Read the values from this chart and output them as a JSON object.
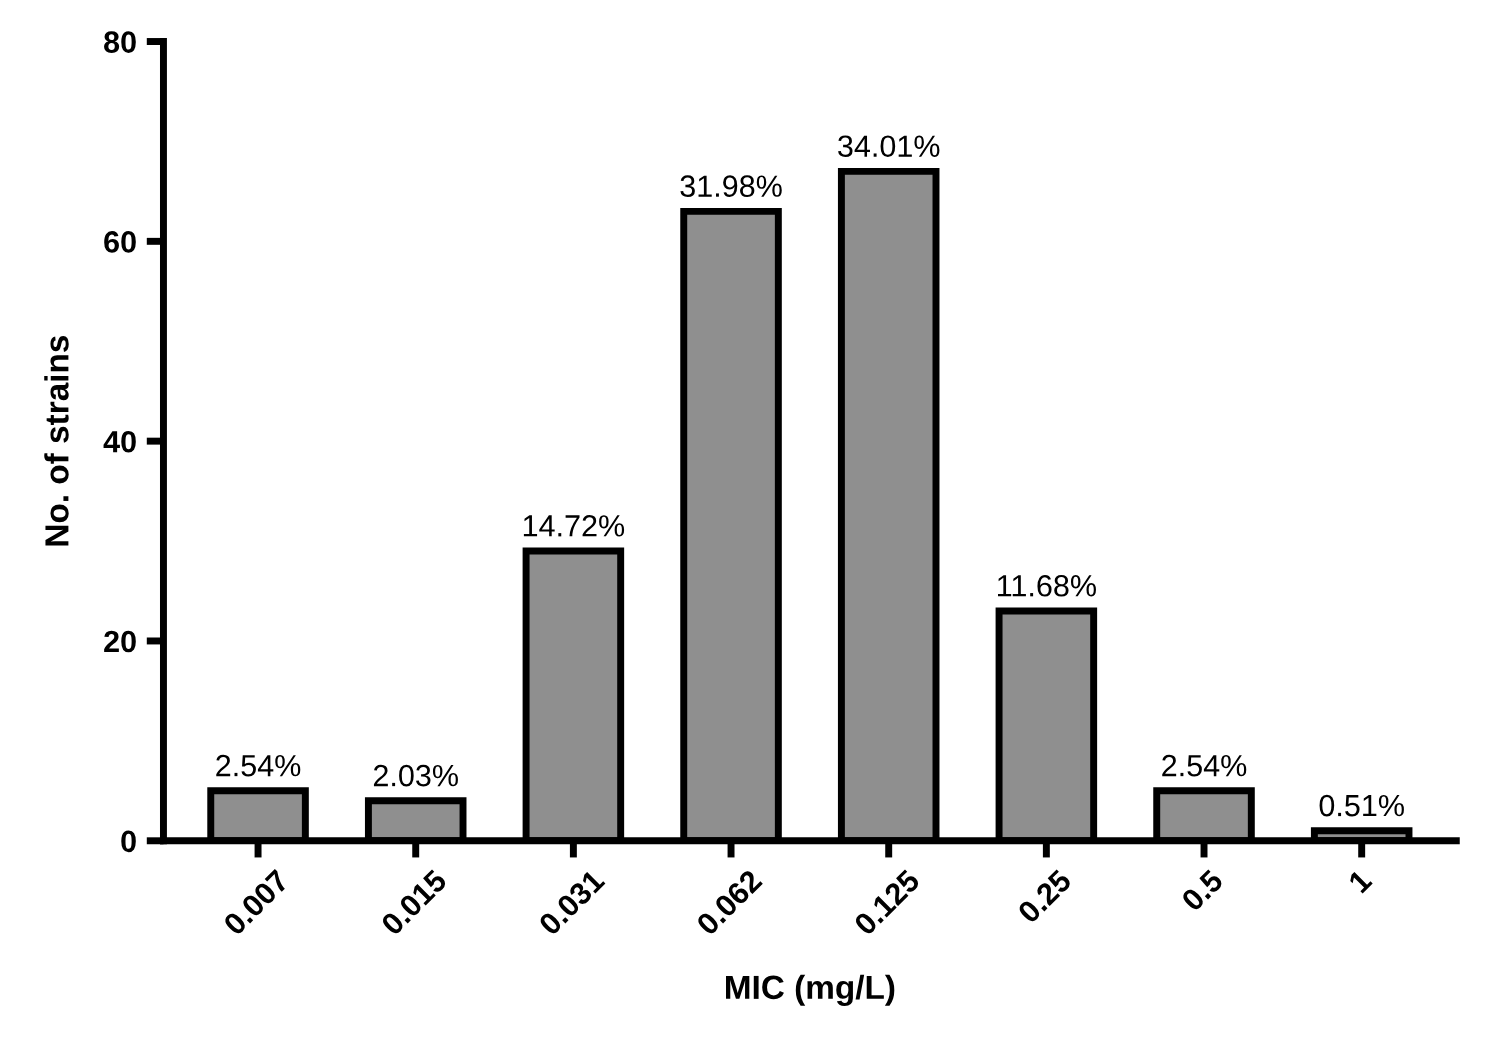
{
  "chart_data": {
    "type": "bar",
    "xlabel": "MIC (mg/L)",
    "ylabel": "No. of strains",
    "categories": [
      "0.007",
      "0.015",
      "0.031",
      "0.062",
      "0.125",
      "0.25",
      "0.5",
      "1"
    ],
    "values": [
      5,
      4,
      29,
      63,
      67,
      23,
      5,
      1
    ],
    "annotations": [
      {
        "text": "2.54%",
        "x": "0.007",
        "y": 5
      },
      {
        "text": "2.03%",
        "x": "0.015",
        "y": 4
      },
      {
        "text": "14.72%",
        "x": "0.031",
        "y": 29
      },
      {
        "text": "31.98%",
        "x": "0.062",
        "y": 63
      },
      {
        "text": "34.01%",
        "x": "0.125",
        "y": 67
      },
      {
        "text": "11.68%",
        "x": "0.25",
        "y": 23
      },
      {
        "text": "2.54%",
        "x": "0.5",
        "y": 5
      },
      {
        "text": "0.51%",
        "x": "1",
        "y": 1
      }
    ],
    "color": "#8f8f8f",
    "ylim": [
      0,
      80
    ],
    "yticks": [
      0,
      20,
      40,
      60,
      80
    ],
    "grid": false,
    "legend": false
  }
}
